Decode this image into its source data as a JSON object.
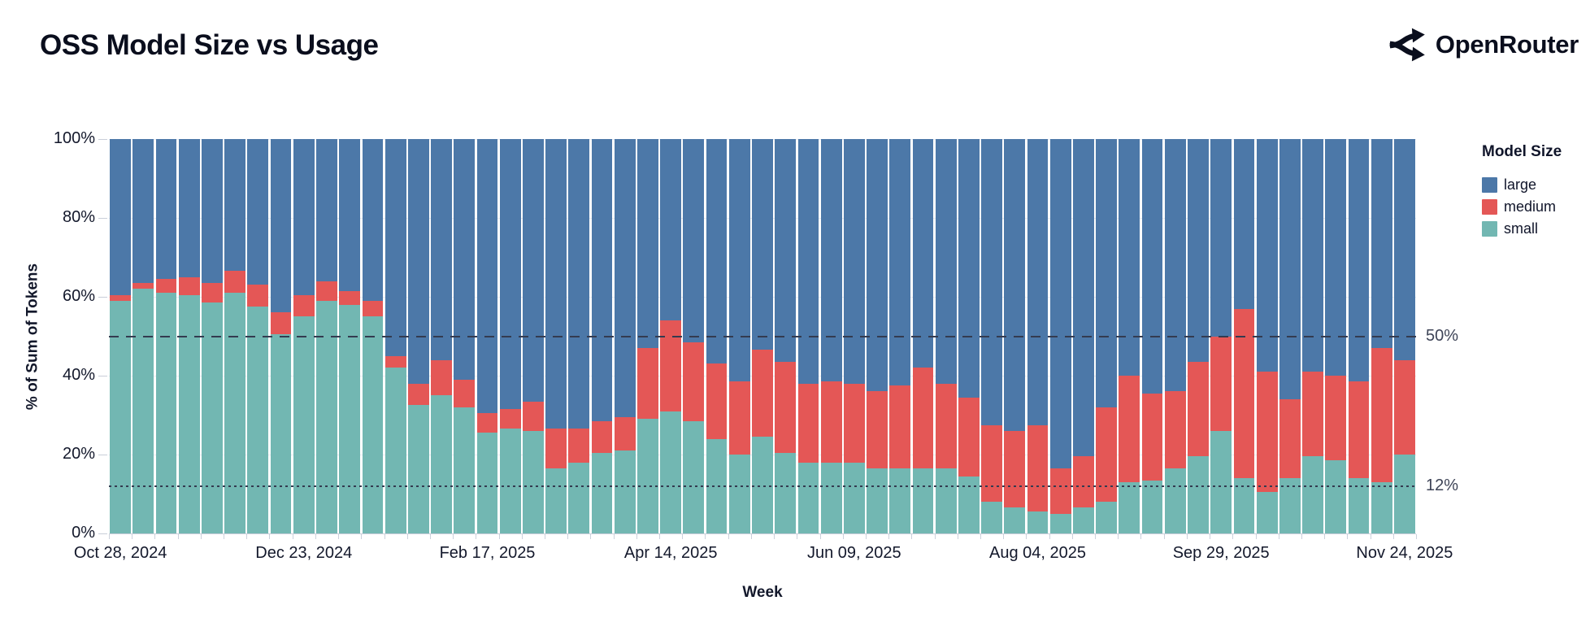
{
  "header": {
    "title": "OSS Model Size vs Usage",
    "brand": "OpenRouter"
  },
  "chart": {
    "y_axis": {
      "title": "% of Sum of Tokens",
      "ticks": [
        "0%",
        "20%",
        "40%",
        "60%",
        "80%",
        "100%"
      ],
      "tick_values": [
        0,
        20,
        40,
        60,
        80,
        100
      ]
    },
    "x_axis": {
      "title": "Week",
      "tick_labels": [
        "Oct 28, 2024",
        "Dec 23, 2024",
        "Feb 17, 2025",
        "Apr 14, 2025",
        "Jun 09, 2025",
        "Aug 04, 2025",
        "Sep 29, 2025",
        "Nov 24, 2025"
      ],
      "tick_positions": [
        0,
        8,
        16,
        24,
        32,
        40,
        48,
        56
      ]
    },
    "legend": {
      "title": "Model Size",
      "items": [
        {
          "label": "large",
          "color": "#4c78a8"
        },
        {
          "label": "medium",
          "color": "#e45756"
        },
        {
          "label": "small",
          "color": "#72b7b2"
        }
      ]
    }
  },
  "chart_data": {
    "type": "bar",
    "stacked": true,
    "title": "OSS Model Size vs Usage",
    "xlabel": "Week",
    "ylabel": "% of Sum of Tokens",
    "ylim": [
      0,
      100
    ],
    "grid": "horizontal",
    "legend_position": "right",
    "categories": [
      "Oct 28, 2024",
      "Nov 04, 2024",
      "Nov 11, 2024",
      "Nov 18, 2024",
      "Nov 25, 2024",
      "Dec 02, 2024",
      "Dec 09, 2024",
      "Dec 16, 2024",
      "Dec 23, 2024",
      "Dec 30, 2024",
      "Jan 06, 2025",
      "Jan 13, 2025",
      "Jan 20, 2025",
      "Jan 27, 2025",
      "Feb 03, 2025",
      "Feb 10, 2025",
      "Feb 17, 2025",
      "Feb 24, 2025",
      "Mar 03, 2025",
      "Mar 10, 2025",
      "Mar 17, 2025",
      "Mar 24, 2025",
      "Mar 31, 2025",
      "Apr 07, 2025",
      "Apr 14, 2025",
      "Apr 21, 2025",
      "Apr 28, 2025",
      "May 05, 2025",
      "May 12, 2025",
      "May 19, 2025",
      "May 26, 2025",
      "Jun 02, 2025",
      "Jun 09, 2025",
      "Jun 16, 2025",
      "Jun 23, 2025",
      "Jun 30, 2025",
      "Jul 07, 2025",
      "Jul 14, 2025",
      "Jul 21, 2025",
      "Jul 28, 2025",
      "Aug 04, 2025",
      "Aug 11, 2025",
      "Aug 18, 2025",
      "Aug 25, 2025",
      "Sep 01, 2025",
      "Sep 08, 2025",
      "Sep 15, 2025",
      "Sep 22, 2025",
      "Sep 29, 2025",
      "Oct 06, 2025",
      "Oct 13, 2025",
      "Oct 20, 2025",
      "Oct 27, 2025",
      "Nov 03, 2025",
      "Nov 10, 2025",
      "Nov 17, 2025",
      "Nov 24, 2025"
    ],
    "series": [
      {
        "name": "small",
        "color": "#72b7b2",
        "values": [
          59,
          62,
          61,
          60.5,
          58.5,
          61,
          57.5,
          50.5,
          55,
          59,
          58,
          55,
          42,
          32.5,
          35,
          32,
          25.5,
          26.5,
          26,
          16.5,
          18,
          20.5,
          21,
          29,
          31,
          28.5,
          24,
          20,
          24.5,
          20.5,
          18,
          18,
          18,
          16.5,
          16.5,
          16.5,
          16.5,
          14.5,
          8,
          6.5,
          5.5,
          5,
          6.5,
          8,
          13,
          13.5,
          16.5,
          19.5,
          26,
          14,
          10.5,
          14,
          19.5,
          18.5,
          14,
          13,
          20
        ]
      },
      {
        "name": "medium",
        "color": "#e45756",
        "values": [
          1.5,
          1.5,
          3.5,
          4.5,
          5,
          5.5,
          5.5,
          5.5,
          5.5,
          5,
          3.5,
          4,
          3,
          5.5,
          9,
          7,
          5,
          5,
          7.5,
          10,
          8.5,
          8,
          8.5,
          18,
          23,
          20,
          19,
          18.5,
          22,
          23,
          20,
          20.5,
          20,
          19.5,
          21,
          25.5,
          21.5,
          20,
          19.5,
          19.5,
          22,
          11.5,
          13,
          24,
          27,
          22,
          19.5,
          24,
          24,
          43,
          30.5,
          20,
          21.5,
          21.5,
          24.5,
          34,
          24
        ]
      },
      {
        "name": "large",
        "color": "#4c78a8",
        "values": [
          39.5,
          36.5,
          35.5,
          35,
          36.5,
          33.5,
          37,
          44,
          39.5,
          36,
          38.5,
          41,
          55,
          62,
          56,
          61,
          69.5,
          68.5,
          66.5,
          73.5,
          73.5,
          71.5,
          70.5,
          53,
          46,
          51.5,
          57,
          61.5,
          53.5,
          56.5,
          62,
          61.5,
          62,
          64,
          62.5,
          58,
          62,
          65.5,
          72.5,
          74,
          72.5,
          83.5,
          80.5,
          68,
          60,
          64.5,
          64,
          56.5,
          50,
          43,
          59,
          66,
          59,
          60,
          61.5,
          53,
          56
        ]
      }
    ],
    "reference_lines": [
      {
        "label": "50%",
        "value": 50,
        "style": "dashed"
      },
      {
        "label": "12%",
        "value": 12,
        "style": "dotted"
      }
    ]
  }
}
